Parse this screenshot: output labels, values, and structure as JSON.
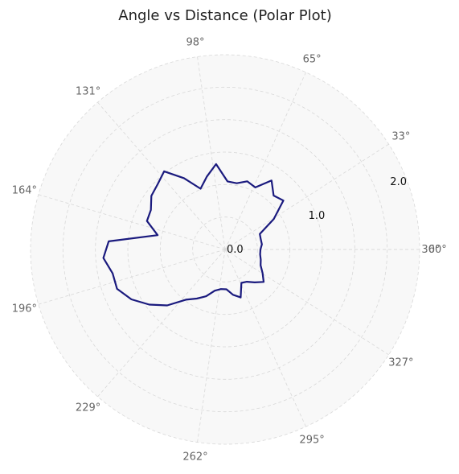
{
  "chart_data": {
    "type": "polar-line",
    "title": "Angle vs Distance (Polar Plot)",
    "theta_unit": "degrees",
    "theta_ticks": [
      "0°",
      "33°",
      "65°",
      "98°",
      "131°",
      "164°",
      "196°",
      "229°",
      "262°",
      "295°",
      "327°",
      "360°"
    ],
    "r_ticks": [
      "0.0",
      "1.0",
      "2.0"
    ],
    "rlim": [
      0,
      2.2
    ],
    "grid": true,
    "line_color": "#1a1a7e",
    "grid_color": "#d8d8d8",
    "face_color": "#f8f8f8",
    "series": [
      {
        "theta": [
          0,
          8,
          16,
          24,
          32,
          40,
          48,
          56,
          64,
          72,
          80,
          88,
          96,
          104,
          112,
          120,
          128,
          136,
          144,
          152,
          160,
          168,
          176,
          184,
          192,
          200,
          208,
          216,
          224,
          232,
          240,
          248,
          256,
          264,
          272,
          280,
          288,
          296,
          304,
          312,
          320,
          328,
          336,
          344,
          352,
          360
        ],
        "r": [
          0.4,
          0.42,
          0.42,
          0.43,
          0.65,
          0.86,
          0.82,
          0.94,
          0.78,
          0.81,
          0.76,
          0.77,
          0.97,
          0.85,
          0.74,
          0.93,
          1.12,
          1.06,
          1.03,
          0.95,
          0.94,
          0.78,
          1.32,
          1.38,
          1.3,
          1.3,
          1.2,
          1.06,
          0.91,
          0.72,
          0.64,
          0.57,
          0.48,
          0.45,
          0.45,
          0.52,
          0.57,
          0.42,
          0.44,
          0.5,
          0.57,
          0.5,
          0.44,
          0.42,
          0.4,
          0.4
        ]
      }
    ]
  }
}
